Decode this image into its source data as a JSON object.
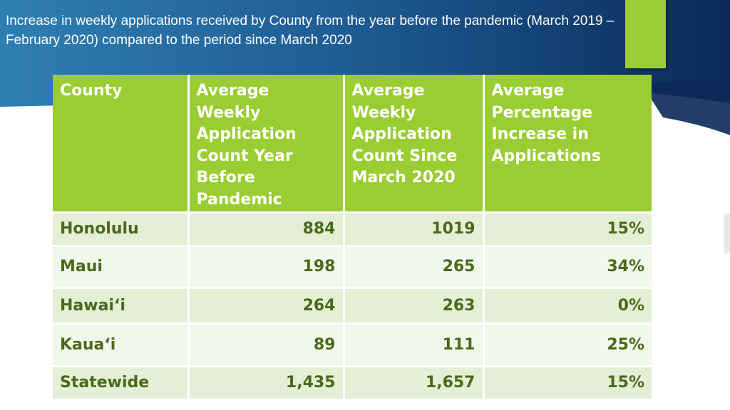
{
  "title": "Increase in weekly applications received by County from the year before the pandemic (March 2019 – February 2020) compared to the period since March 2020",
  "colors": {
    "banner_dark": "#0b2a58",
    "banner_light": "#2f7fb3",
    "accent_green": "#9acd32",
    "row_odd": "#e4efd6",
    "row_even": "#f2f7ec",
    "body_text": "#4a6a1b"
  },
  "table": {
    "headers": [
      "County",
      "Average Weekly Application Count Year Before Pandemic",
      "Average Weekly Application Count Since March 2020",
      "Average Percentage Increase in Applications"
    ],
    "rows": [
      {
        "county": "Honolulu",
        "before": "884",
        "since": "1019",
        "increase": "15%"
      },
      {
        "county": "Maui",
        "before": "198",
        "since": "265",
        "increase": "34%"
      },
      {
        "county": "Hawai‘i",
        "before": "264",
        "since": "263",
        "increase": "0%"
      },
      {
        "county": "Kaua‘i",
        "before": "89",
        "since": "111",
        "increase": "25%"
      },
      {
        "county": "Statewide",
        "before": "1,435",
        "since": "1,657",
        "increase": "15%"
      }
    ]
  }
}
